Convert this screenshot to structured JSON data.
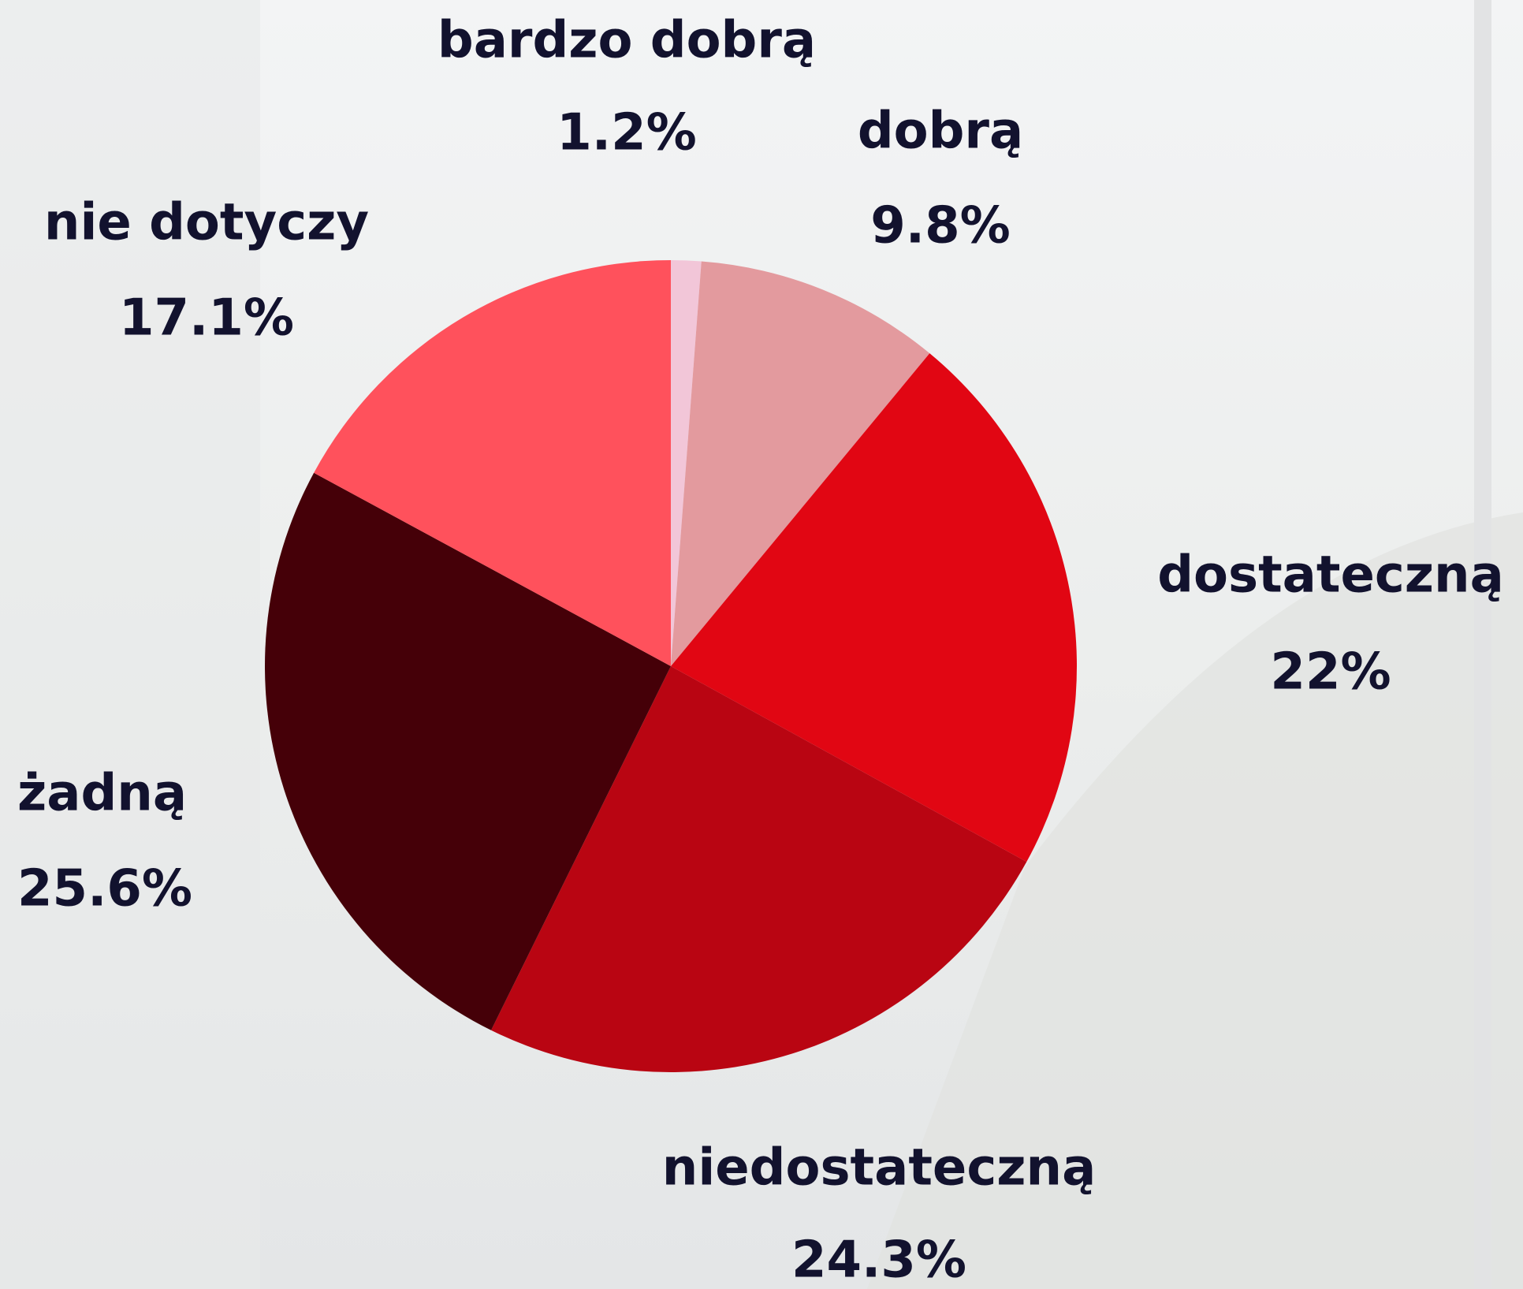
{
  "chart_data": {
    "type": "pie",
    "categories": [
      "bardzo dobrą",
      "dobrą",
      "dostateczną",
      "niedostateczną",
      "żadną",
      "nie dotyczy"
    ],
    "values": [
      1.2,
      9.8,
      22,
      24.3,
      25.6,
      17.1
    ],
    "value_labels": [
      "1.2%",
      "9.8%",
      "22%",
      "24.3%",
      "25.6%",
      "17.1%"
    ],
    "colors": [
      "#f2c6d8",
      "#e39a9e",
      "#e10613",
      "#b90512",
      "#450008",
      "#ff515c"
    ]
  }
}
